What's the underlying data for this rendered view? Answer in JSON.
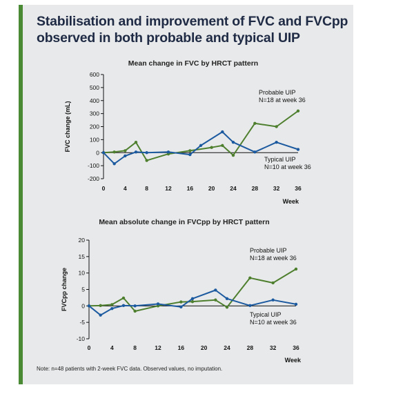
{
  "title": "Stabilisation and improvement of FVC and FVCpp observed in both probable and typical UIP",
  "note": "Note: n=48 patients with 2-week FVC data. Observed values, no imputation.",
  "colors": {
    "accent": "#4a8a34",
    "panel": "#e8e9ea",
    "probable": "#4e7f2e",
    "typical": "#1c5aa0"
  },
  "chart_data": [
    {
      "type": "line",
      "title": "Mean change in FVC by HRCT pattern",
      "xlabel": "Week",
      "ylabel": "FVC change (mL)",
      "xticks": [
        0,
        4,
        8,
        12,
        16,
        20,
        24,
        28,
        32,
        36
      ],
      "yticks": [
        -200,
        -100,
        0,
        100,
        200,
        300,
        400,
        500,
        600
      ],
      "xlim": [
        0,
        36
      ],
      "ylim": [
        -200,
        600
      ],
      "series": [
        {
          "color": "#4e7f2e",
          "x": [
            0,
            2,
            4,
            6,
            8,
            12,
            16,
            20,
            22,
            24,
            28,
            32,
            36
          ],
          "y": [
            0,
            5,
            15,
            80,
            -60,
            -10,
            15,
            40,
            55,
            -20,
            225,
            200,
            320
          ]
        },
        {
          "color": "#1c5aa0",
          "x": [
            0,
            2,
            4,
            6,
            8,
            12,
            16,
            18,
            22,
            24,
            28,
            32,
            36
          ],
          "y": [
            0,
            -85,
            -25,
            5,
            0,
            5,
            -15,
            55,
            160,
            80,
            5,
            80,
            25
          ]
        }
      ],
      "annotations": [
        {
          "line1": "Probable UIP",
          "line2": "N=18 at week 36"
        },
        {
          "line1": "Typical UIP",
          "line2": "N=10 at week 36"
        }
      ]
    },
    {
      "type": "line",
      "title": "Mean absolute change in FVCpp by HRCT pattern",
      "xlabel": "Week",
      "ylabel": "FVCpp change",
      "xticks": [
        0,
        4,
        8,
        12,
        16,
        20,
        24,
        28,
        32,
        36
      ],
      "yticks": [
        -10,
        -5,
        0,
        5,
        10,
        15,
        20
      ],
      "xlim": [
        0,
        36
      ],
      "ylim": [
        -10,
        20
      ],
      "series": [
        {
          "color": "#4e7f2e",
          "x": [
            0,
            2,
            4,
            6,
            8,
            12,
            16,
            18,
            22,
            24,
            28,
            32,
            36
          ],
          "y": [
            0,
            0.1,
            0.4,
            2.4,
            -1.6,
            0,
            1.2,
            1.3,
            1.8,
            -0.4,
            8.5,
            7.0,
            11.2
          ]
        },
        {
          "color": "#1c5aa0",
          "x": [
            0,
            2,
            4,
            6,
            8,
            12,
            16,
            18,
            22,
            24,
            28,
            32,
            36
          ],
          "y": [
            0,
            -2.8,
            -0.8,
            0.1,
            0,
            0.6,
            -0.3,
            2.2,
            4.8,
            2.2,
            0.1,
            1.8,
            0.5
          ]
        }
      ],
      "annotations": [
        {
          "line1": "Probable UIP",
          "line2": "N=18 at week 36"
        },
        {
          "line1": "Typical UIP",
          "line2": "N=10 at week 36"
        }
      ]
    }
  ]
}
